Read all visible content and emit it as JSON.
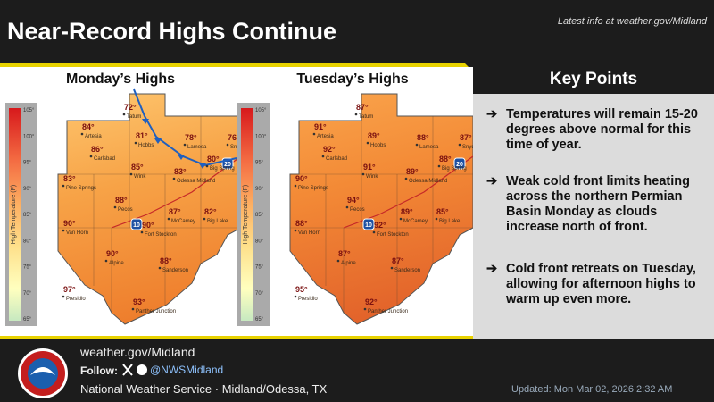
{
  "header": {
    "title": "Near-Record Highs Continue",
    "link": "Latest info at weather.gov/Midland"
  },
  "scale": {
    "label": "High Temperature (F)",
    "ticks": [
      "105°",
      "100°",
      "95°",
      "90°",
      "85°",
      "80°",
      "75°",
      "70°",
      "65°"
    ]
  },
  "maps": [
    {
      "title": "Monday’s Highs",
      "interstates": [
        "10",
        "20"
      ],
      "cities": [
        {
          "name": "Artesia",
          "temp": "84°"
        },
        {
          "name": "Carlsbad",
          "temp": "86°"
        },
        {
          "name": "Tatum",
          "temp": "72°"
        },
        {
          "name": "Hobbs",
          "temp": "81°"
        },
        {
          "name": "Lamesa",
          "temp": "78°"
        },
        {
          "name": "Snyder",
          "temp": "76°"
        },
        {
          "name": "Big Spring",
          "temp": "80°"
        },
        {
          "name": "Odessa Midland",
          "temp": "83°"
        },
        {
          "name": "Pine Springs",
          "temp": "83°"
        },
        {
          "name": "Wink",
          "temp": "85°"
        },
        {
          "name": "Pecos",
          "temp": "88°"
        },
        {
          "name": "McCamey",
          "temp": "87°"
        },
        {
          "name": "Big Lake",
          "temp": "82°"
        },
        {
          "name": "Van Horn",
          "temp": "90°"
        },
        {
          "name": "Fort Stockton",
          "temp": "90°"
        },
        {
          "name": "Alpine",
          "temp": "90°"
        },
        {
          "name": "Sanderson",
          "temp": "88°"
        },
        {
          "name": "Presidio",
          "temp": "97°"
        },
        {
          "name": "Panther Junction",
          "temp": "93°"
        }
      ]
    },
    {
      "title": "Tuesday’s Highs",
      "interstates": [
        "10",
        "20"
      ],
      "cities": [
        {
          "name": "Artesia",
          "temp": "91°"
        },
        {
          "name": "Carlsbad",
          "temp": "92°"
        },
        {
          "name": "Tatum",
          "temp": "87°"
        },
        {
          "name": "Hobbs",
          "temp": "89°"
        },
        {
          "name": "Lamesa",
          "temp": "88°"
        },
        {
          "name": "Snyder",
          "temp": "87°"
        },
        {
          "name": "Big Spring",
          "temp": "88°"
        },
        {
          "name": "Odessa Midland",
          "temp": "89°"
        },
        {
          "name": "Pine Springs",
          "temp": "90°"
        },
        {
          "name": "Wink",
          "temp": "91°"
        },
        {
          "name": "Pecos",
          "temp": "94°"
        },
        {
          "name": "McCamey",
          "temp": "89°"
        },
        {
          "name": "Big Lake",
          "temp": "85°"
        },
        {
          "name": "Van Horn",
          "temp": "88°"
        },
        {
          "name": "Fort Stockton",
          "temp": "92°"
        },
        {
          "name": "Alpine",
          "temp": "87°"
        },
        {
          "name": "Sanderson",
          "temp": "87°"
        },
        {
          "name": "Presidio",
          "temp": "95°"
        },
        {
          "name": "Panther Junction",
          "temp": "92°"
        }
      ]
    }
  ],
  "key_points": {
    "title": "Key Points",
    "items": [
      "Temperatures will remain 15-20 degrees above normal for this time of year.",
      "Weak cold front limits heating across the northern Permian Basin Monday as clouds increase north of front.",
      "Cold front retreats on Tuesday, allowing for afternoon highs to warm up even more."
    ]
  },
  "footer": {
    "site": "weather.gov/Midland",
    "follow": "Follow:",
    "handle": "@NWSMidland",
    "office": "National Weather Service · Midland/Odessa, TX",
    "updated": "Updated: Mon Mar 02, 2026 2:32 AM"
  }
}
